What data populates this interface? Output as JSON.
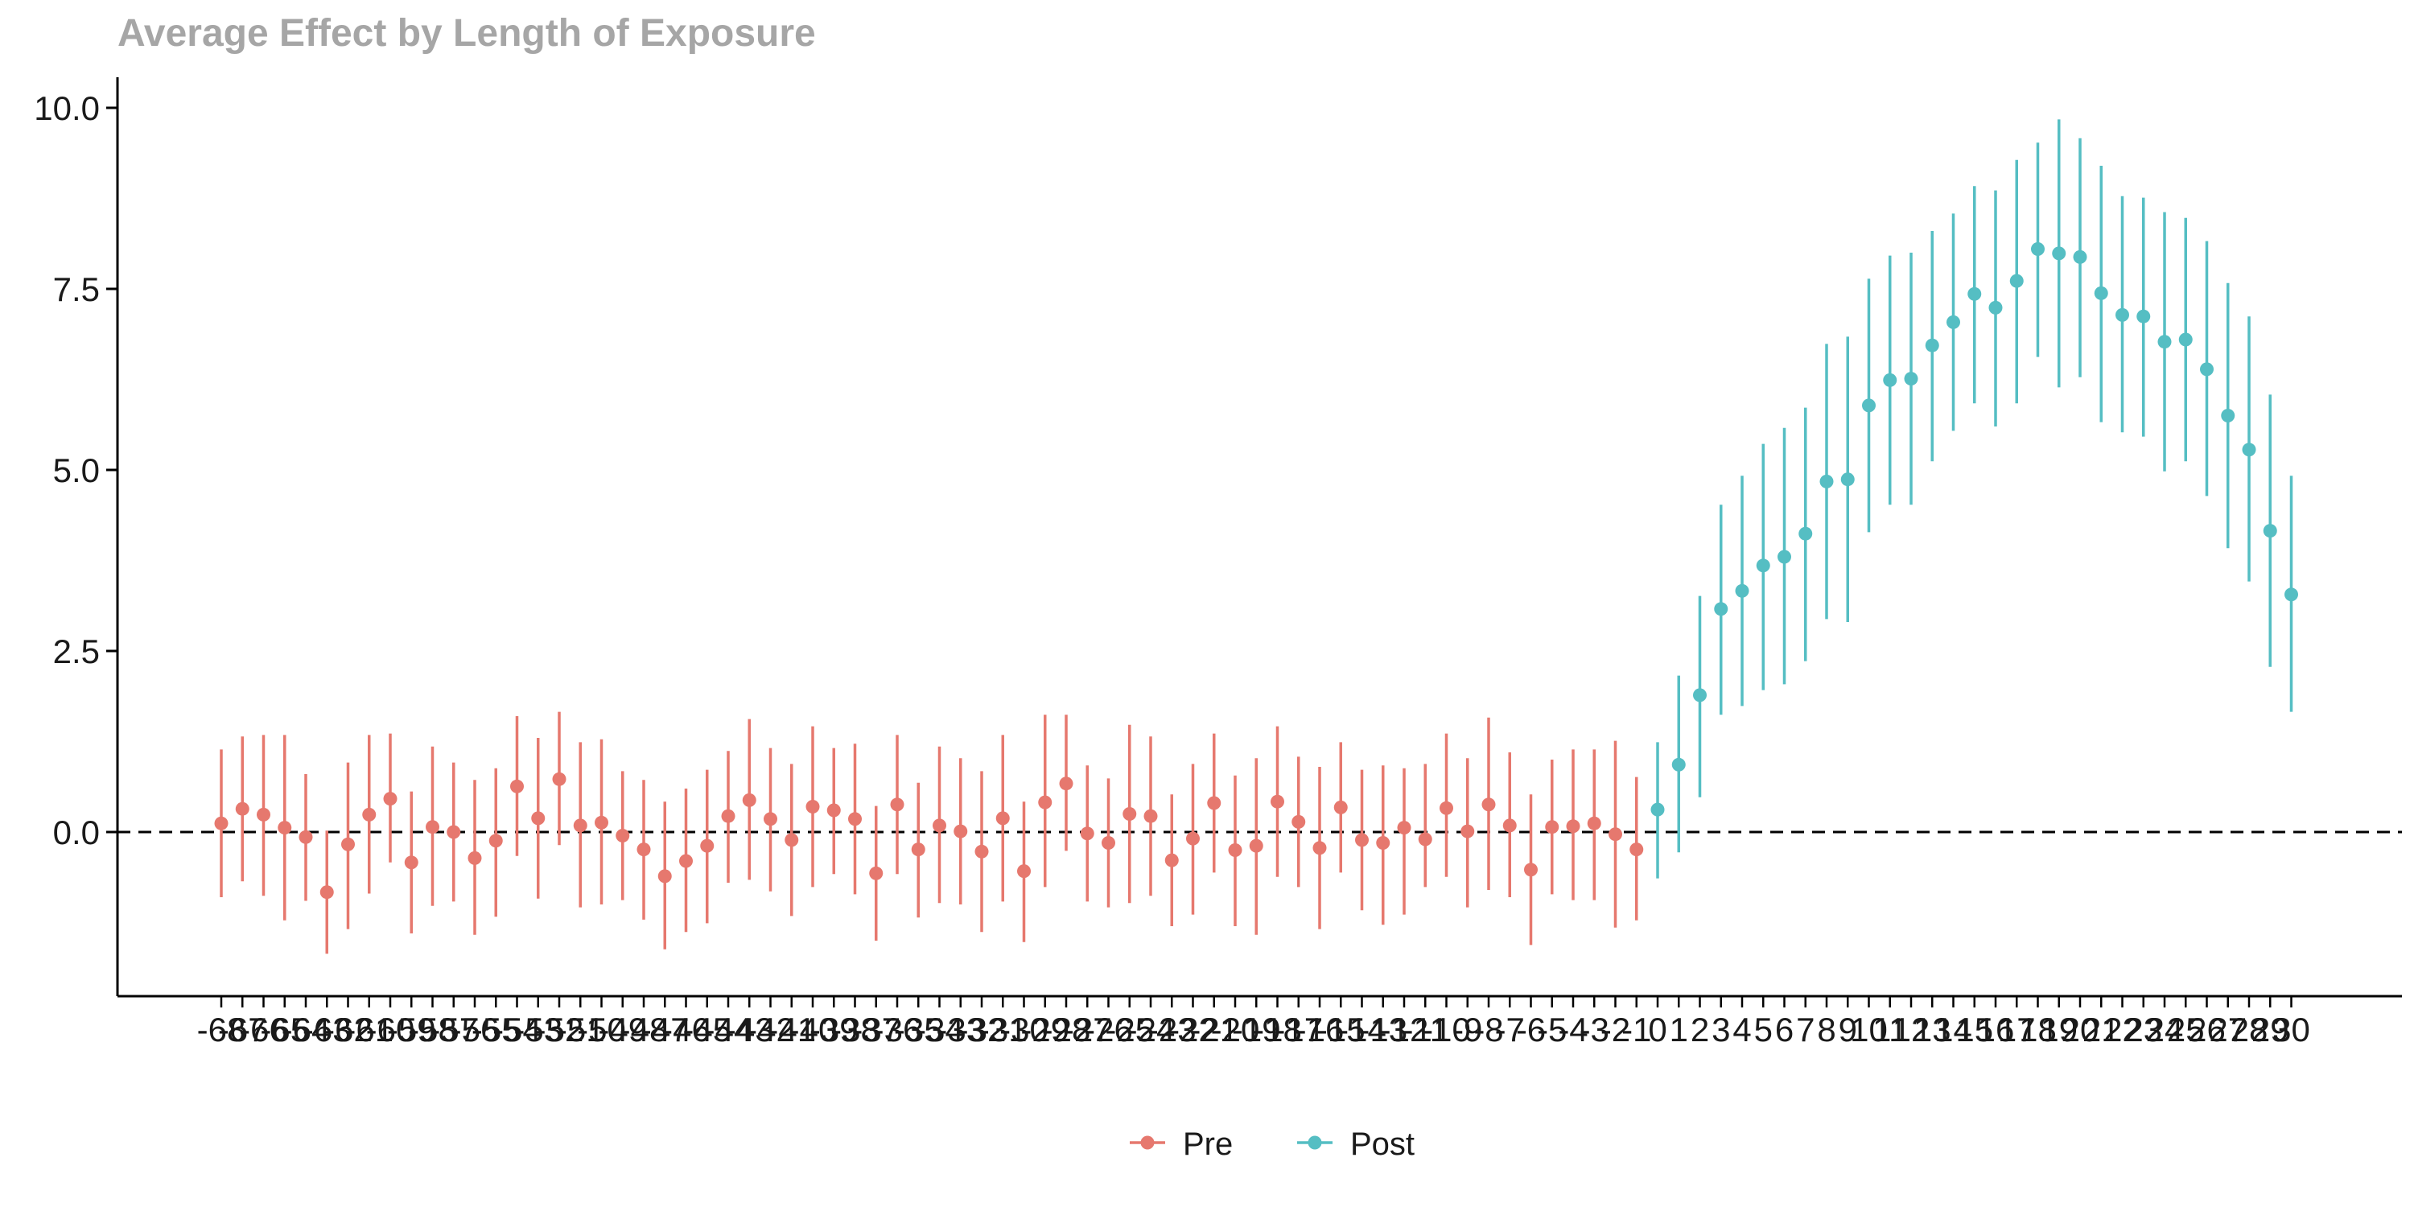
{
  "chart_data": {
    "type": "scatter",
    "title": "Average Effect by Length of Exposure",
    "xlabel": "",
    "ylabel": "",
    "ylim": [
      -2.3,
      10.4
    ],
    "yticks": [
      "0.0",
      "2.5",
      "5.0",
      "7.5",
      "10.0"
    ],
    "reference_line": {
      "y": 0,
      "style": "dashed",
      "color": "#000000"
    },
    "grid": false,
    "legend_position": "bottom",
    "colors": {
      "Pre": "#e6786e",
      "Post": "#55bec3"
    },
    "x": [
      -68,
      -67,
      -66,
      -65,
      -64,
      -63,
      -62,
      -61,
      -60,
      -59,
      -58,
      -57,
      -56,
      -55,
      -54,
      -53,
      -52,
      -51,
      -50,
      -49,
      -48,
      -47,
      -46,
      -45,
      -44,
      -43,
      -42,
      -41,
      -40,
      -39,
      -38,
      -37,
      -36,
      -35,
      -34,
      -33,
      -32,
      -31,
      -30,
      -29,
      -28,
      -27,
      -26,
      -25,
      -24,
      -23,
      -22,
      -21,
      -20,
      -19,
      -18,
      -17,
      -16,
      -15,
      -14,
      -13,
      -12,
      -11,
      -10,
      -9,
      -8,
      -7,
      -6,
      -5,
      -4,
      -3,
      -2,
      -1,
      0,
      1,
      2,
      3,
      4,
      5,
      6,
      7,
      8,
      9,
      10,
      11,
      12,
      13,
      14,
      15,
      16,
      17,
      18,
      19,
      20,
      21,
      22,
      23,
      24,
      25,
      26,
      27,
      28,
      29,
      30
    ],
    "series": [
      {
        "name": "Pre",
        "estimate": [
          0.12,
          0.32,
          0.24,
          0.06,
          -0.07,
          -0.83,
          -0.17,
          0.24,
          0.46,
          -0.42,
          0.07,
          0.0,
          -0.36,
          -0.12,
          0.63,
          0.19,
          0.73,
          0.09,
          0.13,
          -0.05,
          -0.24,
          -0.61,
          -0.4,
          -0.19,
          0.22,
          0.44,
          0.18,
          -0.11,
          0.35,
          0.3,
          0.18,
          -0.57,
          0.38,
          -0.24,
          0.09,
          0.01,
          -0.27,
          0.19,
          -0.54,
          0.41,
          0.67,
          -0.02,
          -0.15,
          0.25,
          0.22,
          -0.39,
          -0.09,
          0.4,
          -0.25,
          -0.19,
          0.42,
          0.14,
          -0.22,
          0.34,
          -0.11,
          -0.15,
          0.06,
          -0.1,
          0.33,
          0.01,
          0.38,
          0.09,
          -0.52,
          0.07,
          0.08,
          0.12,
          -0.03,
          -0.24
        ],
        "ci_low": [
          -0.9,
          -0.68,
          -0.88,
          -1.22,
          -0.95,
          -1.68,
          -1.34,
          -0.85,
          -0.42,
          -1.4,
          -1.02,
          -0.96,
          -1.42,
          -1.17,
          -0.33,
          -0.92,
          -0.18,
          -1.04,
          -1.0,
          -0.94,
          -1.21,
          -1.62,
          -1.38,
          -1.26,
          -0.7,
          -0.66,
          -0.82,
          -1.16,
          -0.76,
          -0.58,
          -0.86,
          -1.5,
          -0.58,
          -1.18,
          -0.98,
          -1.0,
          -1.38,
          -0.96,
          -1.52,
          -0.76,
          -0.26,
          -0.96,
          -1.04,
          -0.98,
          -0.88,
          -1.3,
          -1.14,
          -0.56,
          -1.3,
          -1.42,
          -0.62,
          -0.76,
          -1.34,
          -0.56,
          -1.08,
          -1.28,
          -1.14,
          -0.76,
          -0.62,
          -1.04,
          -0.8,
          -0.9,
          -1.56,
          -0.86,
          -0.94,
          -0.94,
          -1.32,
          -1.22
        ],
        "ci_high": [
          1.14,
          1.32,
          1.34,
          1.34,
          0.8,
          0.02,
          0.96,
          1.34,
          1.36,
          0.56,
          1.18,
          0.96,
          0.72,
          0.88,
          1.6,
          1.3,
          1.66,
          1.24,
          1.28,
          0.84,
          0.72,
          0.42,
          0.6,
          0.86,
          1.12,
          1.56,
          1.16,
          0.94,
          1.46,
          1.16,
          1.22,
          0.36,
          1.34,
          0.68,
          1.18,
          1.02,
          0.84,
          1.34,
          0.42,
          1.62,
          1.62,
          0.92,
          0.74,
          1.48,
          1.32,
          0.52,
          0.94,
          1.36,
          0.78,
          1.02,
          1.46,
          1.04,
          0.9,
          1.24,
          0.86,
          0.92,
          0.88,
          0.94,
          1.36,
          1.02,
          1.58,
          1.1,
          0.52,
          1.0,
          1.14,
          1.14,
          1.26,
          0.76
        ]
      },
      {
        "name": "Post",
        "estimate": [
          0.31,
          0.93,
          1.89,
          3.08,
          3.33,
          3.68,
          3.8,
          4.12,
          4.84,
          4.87,
          5.89,
          6.24,
          6.26,
          6.72,
          7.04,
          7.43,
          7.24,
          7.61,
          8.05,
          7.99,
          7.94,
          7.44,
          7.14,
          7.12,
          6.77,
          6.8,
          6.39,
          5.75,
          5.28,
          4.16,
          3.28
        ],
        "ci_low": [
          -0.64,
          -0.28,
          0.48,
          1.62,
          1.74,
          1.96,
          2.04,
          2.36,
          2.94,
          2.9,
          4.14,
          4.52,
          4.52,
          5.12,
          5.54,
          5.92,
          5.6,
          5.92,
          6.56,
          6.14,
          6.28,
          5.66,
          5.52,
          5.46,
          4.98,
          5.12,
          4.64,
          3.92,
          3.46,
          2.28,
          1.66
        ],
        "ci_high": [
          1.24,
          2.16,
          3.26,
          4.52,
          4.92,
          5.36,
          5.58,
          5.86,
          6.74,
          6.84,
          7.64,
          7.96,
          8.0,
          8.3,
          8.54,
          8.92,
          8.86,
          9.28,
          9.52,
          9.84,
          9.58,
          9.2,
          8.78,
          8.76,
          8.56,
          8.48,
          8.16,
          7.58,
          7.12,
          6.04,
          4.92
        ]
      }
    ]
  }
}
